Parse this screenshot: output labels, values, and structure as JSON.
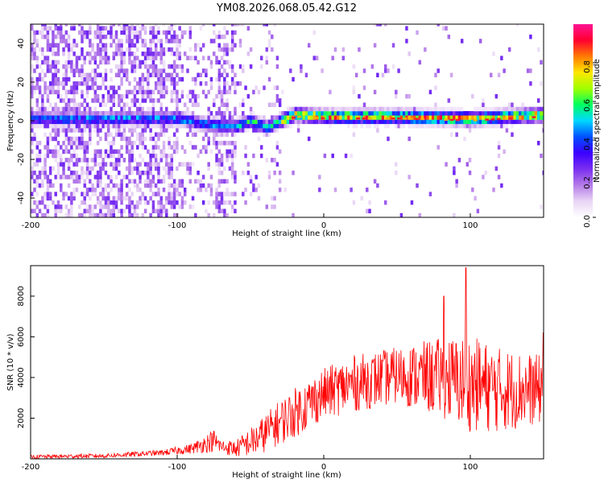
{
  "figure_title": "YM08.2026.068.05.42.G12",
  "chart_data": [
    {
      "type": "heatmap",
      "name": "spectrogram",
      "xlabel": "Height of straight line (km)",
      "ylabel": "Frequency (Hz)",
      "xlim": [
        -200,
        150
      ],
      "ylim": [
        -50,
        50
      ],
      "xticks": [
        -200,
        -100,
        0,
        100
      ],
      "yticks": [
        -40,
        -20,
        0,
        20,
        40
      ],
      "colorbar": {
        "label": "Normalized spectral amplitude",
        "range": [
          0,
          1
        ],
        "ticks": [
          "0.0",
          "0.2",
          "0.4",
          "0.6",
          "0.8"
        ],
        "colors": [
          "#ffffff",
          "#e9d5f5",
          "#b57be8",
          "#7a2ff0",
          "#3b00ff",
          "#0050ff",
          "#00d8ff",
          "#00ff60",
          "#a0ff00",
          "#ffe600",
          "#ff7a00",
          "#ff0030",
          "#ff1494"
        ]
      },
      "ridge": {
        "x": [
          -200,
          -150,
          -100,
          -80,
          -60,
          -50,
          -40,
          -30,
          -20,
          0,
          50,
          100,
          150
        ],
        "freq_hz": [
          0,
          0,
          0,
          -3,
          -4,
          -1,
          -5,
          -1,
          2,
          1,
          1,
          0,
          2
        ]
      }
    },
    {
      "type": "line",
      "name": "snr",
      "xlabel": "Height of straight line (km)",
      "ylabel": "SNR (10 * v/v)",
      "xlim": [
        -200,
        150
      ],
      "ylim": [
        0,
        9500
      ],
      "xticks": [
        -200,
        -100,
        0,
        100
      ],
      "yticks": [
        2000,
        4000,
        6000,
        8000
      ],
      "color": "#ff0000",
      "envelope": {
        "x": [
          -200,
          -150,
          -110,
          -90,
          -75,
          -70,
          -60,
          -45,
          -30,
          -15,
          0,
          20,
          50,
          80,
          100,
          120,
          150
        ],
        "mean": [
          100,
          150,
          300,
          500,
          900,
          600,
          500,
          1000,
          1800,
          2500,
          3200,
          3700,
          4100,
          4000,
          3700,
          3400,
          3400
        ],
        "spread": [
          70,
          80,
          100,
          180,
          400,
          250,
          300,
          600,
          800,
          900,
          900,
          1000,
          1000,
          1400,
          1700,
          1500,
          1200
        ]
      },
      "peaks": [
        {
          "x": 97,
          "y": 9400
        },
        {
          "x": 82,
          "y": 8000
        },
        {
          "x": 150,
          "y": 6200
        }
      ]
    }
  ]
}
